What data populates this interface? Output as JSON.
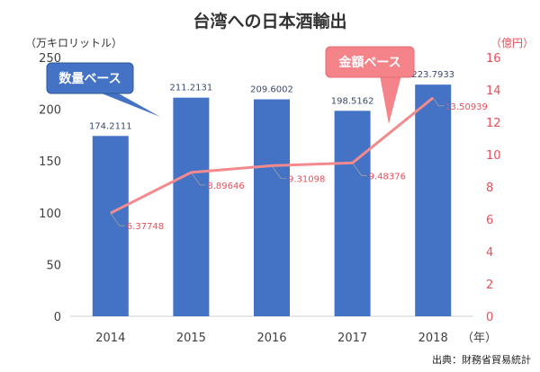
{
  "chart_data": {
    "type": "bar+line",
    "title": "台湾への日本酒輸出",
    "categories": [
      "2014",
      "2015",
      "2016",
      "2017",
      "2018"
    ],
    "x_unit": "（年）",
    "y_left": {
      "unit": "（万キロリットル）",
      "range": [
        0,
        250
      ],
      "ticks": [
        "0",
        "50",
        "100",
        "150",
        "200",
        "250"
      ]
    },
    "y_right": {
      "unit": "（億円）",
      "range": [
        0,
        16
      ],
      "ticks": [
        "0",
        "2",
        "4",
        "6",
        "8",
        "10",
        "12",
        "14",
        "16"
      ]
    },
    "series": [
      {
        "name": "数量ベース",
        "type": "bar",
        "axis": "left",
        "values": [
          174.2111,
          211.2131,
          209.6002,
          198.5162,
          223.7933
        ],
        "labels": [
          "174.2111",
          "211.2131",
          "209.6002",
          "198.5162",
          "223.7933"
        ]
      },
      {
        "name": "金額ベース",
        "type": "line",
        "axis": "right",
        "values": [
          6.37748,
          8.89646,
          9.31098,
          9.48376,
          13.50939
        ],
        "labels": [
          "6.37748",
          "8.89646",
          "9.31098",
          "9.48376",
          "13.50939"
        ]
      }
    ],
    "grid": false
  },
  "colors": {
    "bar": "#4472c4",
    "line": "#f28a8e",
    "right_axis": "#e8505b",
    "callout_bar": "#4472c4",
    "callout_line": "#f4838a"
  },
  "source": "出典：財務省貿易統計"
}
